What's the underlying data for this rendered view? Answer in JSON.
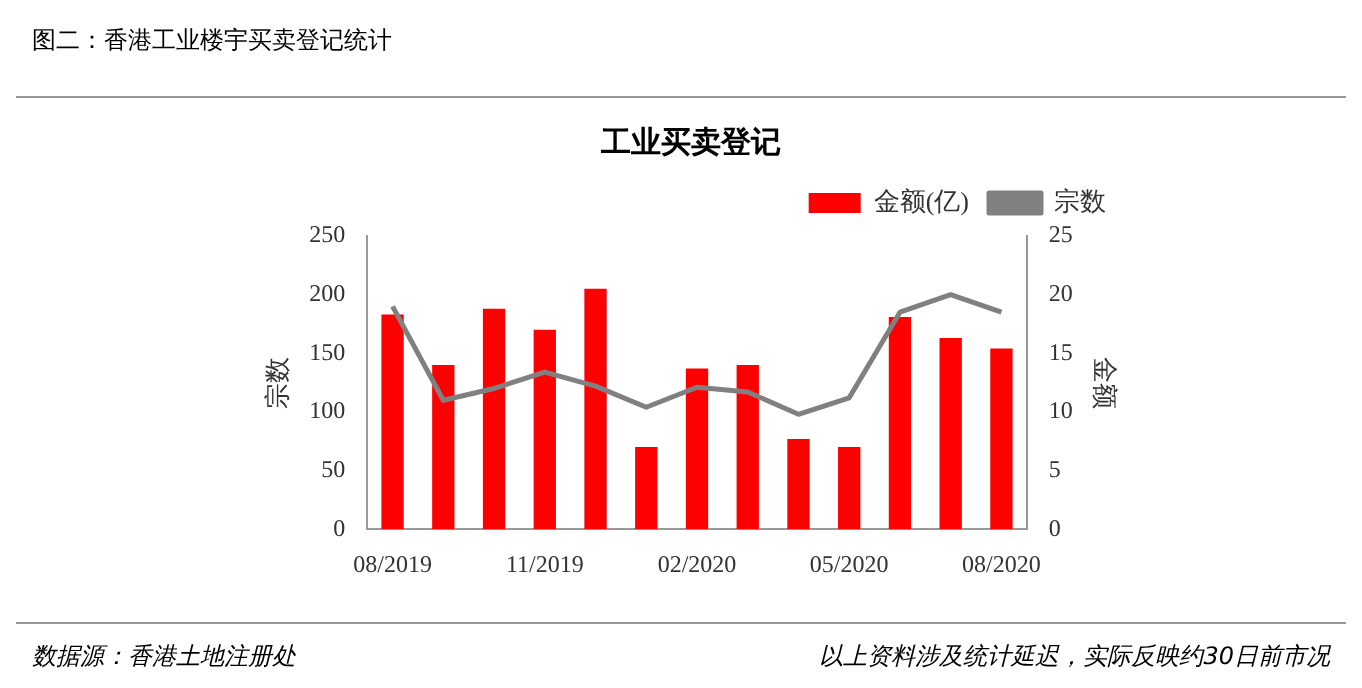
{
  "chart_data": {
    "type": "bar",
    "title": "工业买卖登记",
    "subtitle": "图二：香港工业楼宇买卖登记统计",
    "ylabel": "宗数",
    "y2label": "金额",
    "categories": [
      "08/2019",
      null,
      null,
      "11/2019",
      null,
      null,
      "02/2020",
      null,
      null,
      "05/2020",
      null,
      null,
      "08/2020"
    ],
    "series": [
      {
        "name": "金额(亿)",
        "axis": "y2",
        "color": "#ff0000",
        "values": [
          18.3,
          14.0,
          18.8,
          17.0,
          20.5,
          7.0,
          13.7,
          14.0,
          7.7,
          7.0,
          18.1,
          16.3,
          15.4
        ]
      },
      {
        "name": "宗数",
        "type": "line",
        "color": "#808080",
        "values": [
          190,
          110,
          120,
          134,
          122,
          104,
          121,
          117,
          98,
          112,
          185,
          200,
          185
        ]
      }
    ],
    "ylim": [
      0,
      250
    ],
    "yticks": [
      0,
      50,
      100,
      150,
      200,
      250
    ],
    "y2lim": [
      0,
      25
    ],
    "y2ticks": [
      0,
      5,
      10,
      15,
      20,
      25
    ],
    "grid": false,
    "legend": "top right",
    "marker": "none",
    "annotations": [
      "数据源：香港土地注册处",
      "以上资料涉及统计延迟，实际反映约30日前市况"
    ]
  }
}
